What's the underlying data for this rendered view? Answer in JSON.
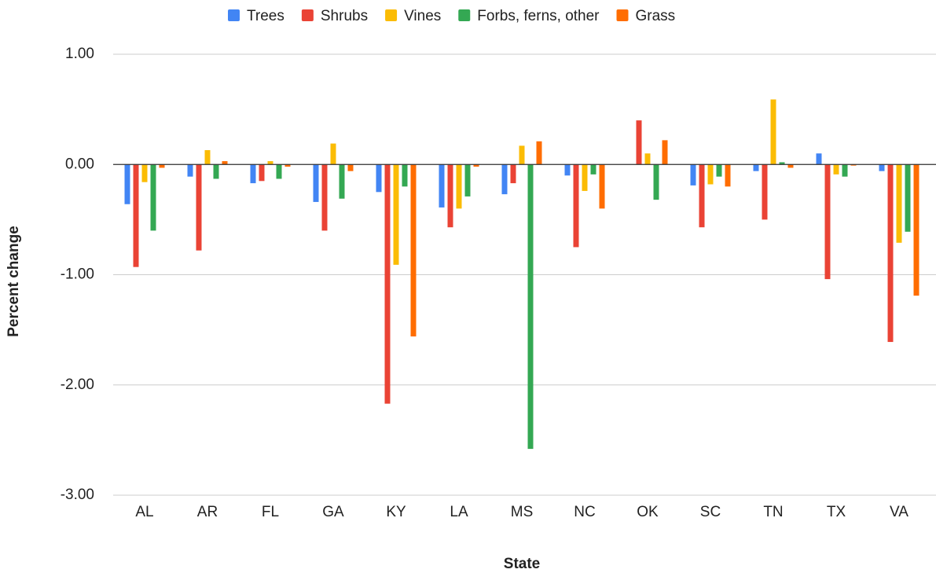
{
  "chart_data": {
    "type": "bar",
    "x_label": "State",
    "y_label": "Percent change",
    "categories": [
      "AL",
      "AR",
      "FL",
      "GA",
      "KY",
      "LA",
      "MS",
      "NC",
      "OK",
      "SC",
      "TN",
      "TX",
      "VA"
    ],
    "series": [
      {
        "name": "Trees",
        "color": "#4285f4",
        "values": [
          -0.36,
          -0.11,
          -0.17,
          -0.34,
          -0.25,
          -0.39,
          -0.27,
          -0.1,
          0,
          -0.19,
          -0.06,
          0.1,
          -0.06
        ]
      },
      {
        "name": "Shrubs",
        "color": "#ea4335",
        "values": [
          -0.93,
          -0.78,
          -0.15,
          -0.6,
          -2.17,
          -0.57,
          -0.17,
          -0.75,
          0.4,
          -0.57,
          -0.5,
          -1.04,
          -1.61
        ]
      },
      {
        "name": "Vines",
        "color": "#fbbc04",
        "values": [
          -0.16,
          0.13,
          0.03,
          0.19,
          -0.91,
          -0.4,
          0.17,
          -0.24,
          0.1,
          -0.18,
          0.59,
          -0.09,
          -0.71
        ]
      },
      {
        "name": "Forbs, ferns, other",
        "color": "#34a853",
        "values": [
          -0.6,
          -0.13,
          -0.13,
          -0.31,
          -0.2,
          -0.29,
          -2.58,
          -0.09,
          -0.32,
          -0.11,
          0.02,
          -0.11,
          -0.61
        ]
      },
      {
        "name": "Grass",
        "color": "#ff6d01",
        "values": [
          -0.03,
          0.03,
          -0.02,
          -0.06,
          -1.56,
          -0.02,
          0.21,
          -0.4,
          0.22,
          -0.2,
          -0.03,
          -0.01,
          -1.19
        ]
      }
    ],
    "ylim": [
      -3,
      1
    ],
    "yticks": [
      {
        "value": -3,
        "label": "-3.00"
      },
      {
        "value": -2,
        "label": "-2.00"
      },
      {
        "value": -1,
        "label": "-1.00"
      },
      {
        "value": 0,
        "label": "0.00"
      },
      {
        "value": 1,
        "label": "1.00"
      }
    ],
    "grid": true,
    "legend": "top"
  }
}
